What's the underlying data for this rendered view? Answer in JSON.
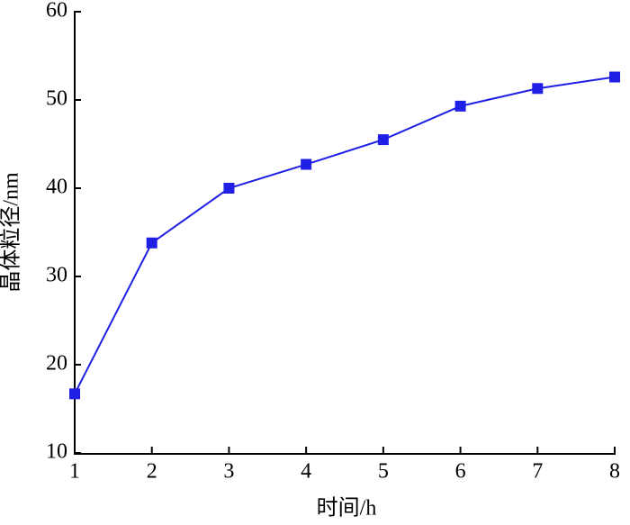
{
  "chart_data": {
    "type": "line",
    "xlabel": "时间/h",
    "ylabel": "晶体粒径/nm",
    "x": [
      1,
      2,
      3,
      4,
      5,
      6,
      7,
      8
    ],
    "series": [
      {
        "color": "#1f1fe6",
        "values": [
          16.7,
          33.8,
          40.0,
          42.7,
          45.5,
          49.3,
          51.3,
          52.6
        ]
      }
    ],
    "xlim": [
      1,
      8
    ],
    "xticks": [
      1,
      2,
      3,
      4,
      5,
      6,
      7,
      8
    ],
    "ylim": [
      10,
      60
    ],
    "yticks": [
      10,
      20,
      30,
      40,
      50,
      60
    ],
    "grid": false,
    "marker": "square"
  }
}
